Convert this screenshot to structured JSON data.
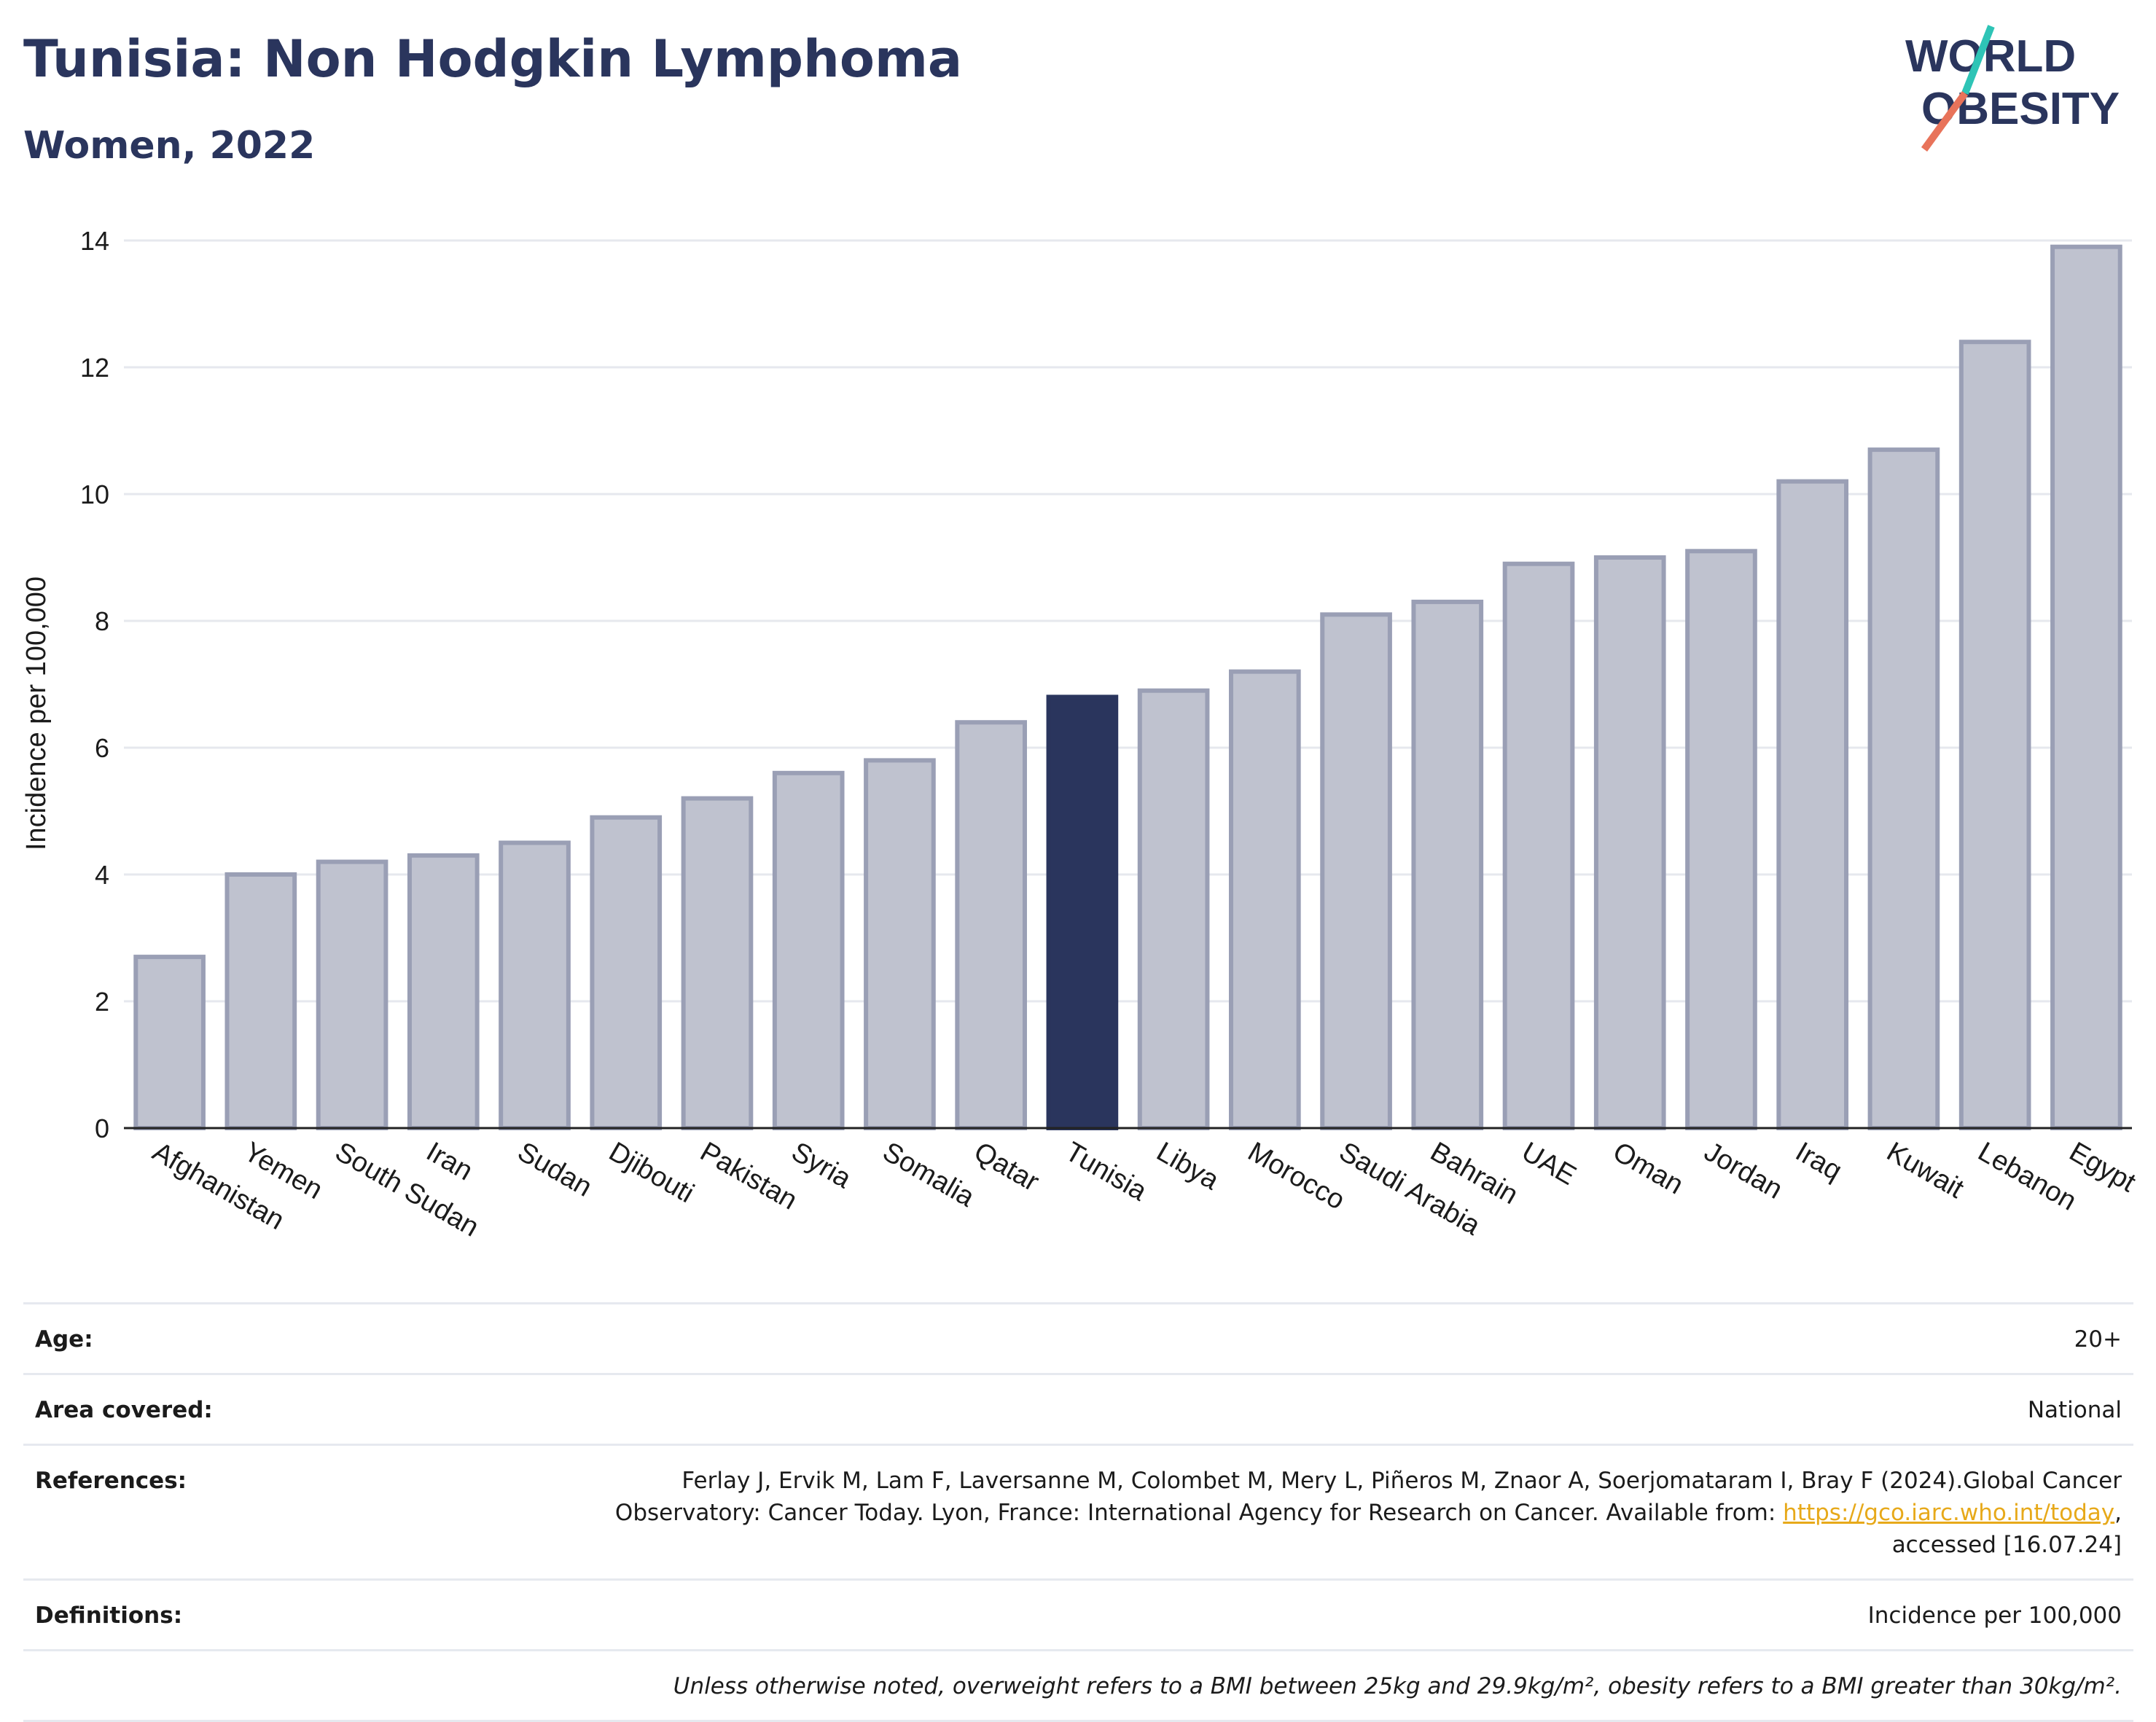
{
  "header": {
    "title": "Tunisia: Non Hodgkin Lymphoma",
    "subtitle": "Women, 2022"
  },
  "logo": {
    "line1": "WORLD",
    "line2": "OBESITY",
    "colors": {
      "text": "#2a355d",
      "slash_teal": "#2ec4b6",
      "slash_coral": "#e8735a"
    }
  },
  "chart_data": {
    "type": "bar",
    "title": "",
    "xlabel": "",
    "ylabel": "Incidence per 100,000",
    "ylim": [
      0,
      14
    ],
    "yticks": [
      0,
      2,
      4,
      6,
      8,
      10,
      12,
      14
    ],
    "grid": true,
    "highlight": "Tunisia",
    "colors": {
      "bar_fill": "#bfc2cf",
      "bar_stroke": "#9a9fb5",
      "highlight_fill": "#2a355d",
      "grid": "#e6e8ee",
      "axis": "#222222"
    },
    "categories": [
      "Afghanistan",
      "Yemen",
      "South Sudan",
      "Iran",
      "Sudan",
      "Djibouti",
      "Pakistan",
      "Syria",
      "Somalia",
      "Qatar",
      "Tunisia",
      "Libya",
      "Morocco",
      "Saudi Arabia",
      "Bahrain",
      "UAE",
      "Oman",
      "Jordan",
      "Iraq",
      "Kuwait",
      "Lebanon",
      "Egypt"
    ],
    "values": [
      2.7,
      4.0,
      4.2,
      4.3,
      4.5,
      4.9,
      5.2,
      5.6,
      5.8,
      6.4,
      6.8,
      6.9,
      7.2,
      8.1,
      8.3,
      8.9,
      9.0,
      9.1,
      10.2,
      10.7,
      12.4,
      13.9
    ]
  },
  "info": {
    "age_label": "Age:",
    "age_value": "20+",
    "area_label": "Area covered:",
    "area_value": "National",
    "references_label": "References:",
    "references_text_1": "Ferlay J, Ervik M, Lam F, Laversanne M, Colombet M, Mery L, Piñeros M, Znaor A, Soerjomataram I, Bray F (2024).Global Cancer Observatory: Cancer Today. Lyon, France: International Agency for Research on Cancer. Available from: ",
    "references_link": "https://gco.iarc.who.int/today",
    "references_text_2": ", accessed [16.07.24]",
    "definitions_label": "Definitions:",
    "definitions_value": "Incidence per 100,000",
    "note": "Unless otherwise noted, overweight refers to a BMI between 25kg and 29.9kg/m², obesity refers to a BMI greater than 30kg/m²."
  }
}
